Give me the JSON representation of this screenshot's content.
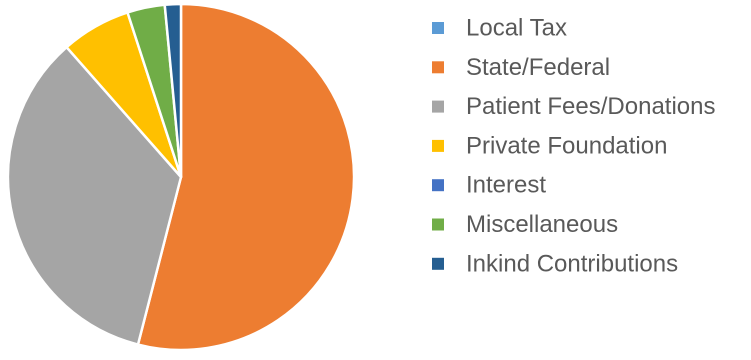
{
  "chart_data": {
    "type": "pie",
    "title": "",
    "legend_position": "right",
    "slices": [
      {
        "label": "Local Tax",
        "value": 0.0,
        "color": "#5B9BD5"
      },
      {
        "label": "State/Federal",
        "value": 54.0,
        "color": "#ED7D31"
      },
      {
        "label": "Patient Fees/Donations",
        "value": 34.5,
        "color": "#A5A5A5"
      },
      {
        "label": "Private Foundation",
        "value": 6.5,
        "color": "#FFC000"
      },
      {
        "label": "Interest",
        "value": 0.0,
        "color": "#4472C4"
      },
      {
        "label": "Miscellaneous",
        "value": 3.5,
        "color": "#70AD47"
      },
      {
        "label": "Inkind Contributions",
        "value": 1.5,
        "color": "#255E91"
      }
    ]
  }
}
